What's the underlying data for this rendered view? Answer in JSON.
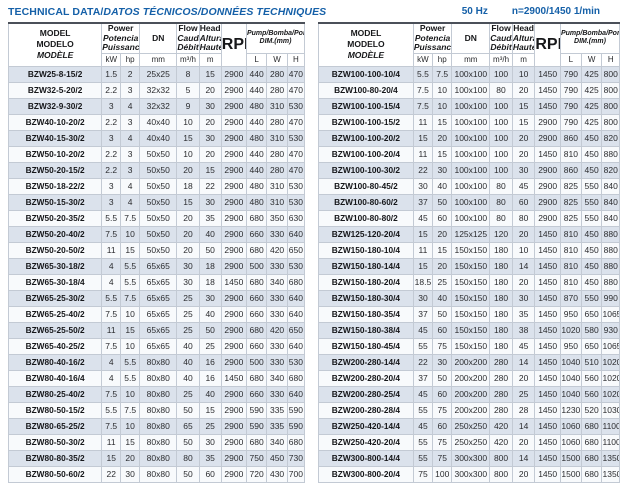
{
  "page": {
    "title_main": "TECHNICAL DATA/",
    "title_intl": "DATOS TÉCNICOS/DONNÉES TECHNIQUES",
    "frequency": "50 Hz",
    "speed": "n=2900/1450 1/min"
  },
  "colors": {
    "accent_blue": "#1560a8",
    "row_shaded": "#dbe2ec",
    "row_plain": "#f8fafc",
    "grid_line": "#c3cad4",
    "header_top_line": "#4b5059"
  },
  "header": {
    "model_l1": "MODEL",
    "model_l2": "MODELO",
    "model_l3": "MODÈLE",
    "power_l1": "Power",
    "power_l2": "Potencia",
    "power_l3": "Puissance",
    "dn": "DN",
    "flow_l1": "Flow",
    "flow_l2": "Caudal",
    "flow_l3": "Débit",
    "head_l1": "Head",
    "head_l2": "Altura",
    "head_l3": "Hauteur",
    "rpm": "RPM",
    "dim_l1": "Pump/Bomba/Pompe",
    "dim_l2": "DIM.(mm)",
    "unit_kw": "kW",
    "unit_hp": "hp",
    "unit_mm": "mm",
    "unit_flow": "m³/h",
    "unit_m": "m",
    "unit_l": "L",
    "unit_w": "W",
    "unit_h": "H"
  },
  "tables": [
    {
      "rows": [
        [
          "BZW25-8-15/2",
          "1.5",
          "2",
          "25x25",
          "8",
          "15",
          "2900",
          "440",
          "280",
          "470"
        ],
        [
          "BZW32-5-20/2",
          "2.2",
          "3",
          "32x32",
          "5",
          "20",
          "2900",
          "440",
          "280",
          "470"
        ],
        [
          "BZW32-9-30/2",
          "3",
          "4",
          "32x32",
          "9",
          "30",
          "2900",
          "480",
          "310",
          "530"
        ],
        [
          "BZW40-10-20/2",
          "2.2",
          "3",
          "40x40",
          "10",
          "20",
          "2900",
          "440",
          "280",
          "470"
        ],
        [
          "BZW40-15-30/2",
          "3",
          "4",
          "40x40",
          "15",
          "30",
          "2900",
          "480",
          "310",
          "530"
        ],
        [
          "BZW50-10-20/2",
          "2.2",
          "3",
          "50x50",
          "10",
          "20",
          "2900",
          "440",
          "280",
          "470"
        ],
        [
          "BZW50-20-15/2",
          "2.2",
          "3",
          "50x50",
          "20",
          "15",
          "2900",
          "440",
          "280",
          "470"
        ],
        [
          "BZW50-18-22/2",
          "3",
          "4",
          "50x50",
          "18",
          "22",
          "2900",
          "480",
          "310",
          "530"
        ],
        [
          "BZW50-15-30/2",
          "3",
          "4",
          "50x50",
          "15",
          "30",
          "2900",
          "480",
          "310",
          "530"
        ],
        [
          "BZW50-20-35/2",
          "5.5",
          "7.5",
          "50x50",
          "20",
          "35",
          "2900",
          "680",
          "350",
          "630"
        ],
        [
          "BZW50-20-40/2",
          "7.5",
          "10",
          "50x50",
          "20",
          "40",
          "2900",
          "660",
          "330",
          "640"
        ],
        [
          "BZW50-20-50/2",
          "11",
          "15",
          "50x50",
          "20",
          "50",
          "2900",
          "680",
          "420",
          "650"
        ],
        [
          "BZW65-30-18/2",
          "4",
          "5.5",
          "65x65",
          "30",
          "18",
          "2900",
          "500",
          "330",
          "530"
        ],
        [
          "BZW65-30-18/4",
          "4",
          "5.5",
          "65x65",
          "30",
          "18",
          "1450",
          "680",
          "340",
          "680"
        ],
        [
          "BZW65-25-30/2",
          "5.5",
          "7.5",
          "65x65",
          "25",
          "30",
          "2900",
          "660",
          "330",
          "640"
        ],
        [
          "BZW65-25-40/2",
          "7.5",
          "10",
          "65x65",
          "25",
          "40",
          "2900",
          "660",
          "330",
          "640"
        ],
        [
          "BZW65-25-50/2",
          "11",
          "15",
          "65x65",
          "25",
          "50",
          "2900",
          "680",
          "420",
          "650"
        ],
        [
          "BZW65-40-25/2",
          "7.5",
          "10",
          "65x65",
          "40",
          "25",
          "2900",
          "660",
          "330",
          "640"
        ],
        [
          "BZW80-40-16/2",
          "4",
          "5.5",
          "80x80",
          "40",
          "16",
          "2900",
          "500",
          "330",
          "530"
        ],
        [
          "BZW80-40-16/4",
          "4",
          "5.5",
          "80x80",
          "40",
          "16",
          "1450",
          "680",
          "340",
          "680"
        ],
        [
          "BZW80-25-40/2",
          "7.5",
          "10",
          "80x80",
          "25",
          "40",
          "2900",
          "660",
          "330",
          "640"
        ],
        [
          "BZW80-50-15/2",
          "5.5",
          "7.5",
          "80x80",
          "50",
          "15",
          "2900",
          "590",
          "335",
          "590"
        ],
        [
          "BZW80-65-25/2",
          "7.5",
          "10",
          "80x80",
          "65",
          "25",
          "2900",
          "590",
          "335",
          "590"
        ],
        [
          "BZW80-50-30/2",
          "11",
          "15",
          "80x80",
          "50",
          "30",
          "2900",
          "680",
          "340",
          "680"
        ],
        [
          "BZW80-80-35/2",
          "15",
          "20",
          "80x80",
          "80",
          "35",
          "2900",
          "750",
          "450",
          "730"
        ],
        [
          "BZW80-50-60/2",
          "22",
          "30",
          "80x80",
          "50",
          "60",
          "2900",
          "720",
          "430",
          "700"
        ]
      ]
    },
    {
      "rows": [
        [
          "BZW100-100-10/4",
          "5.5",
          "7.5",
          "100x100",
          "100",
          "10",
          "1450",
          "790",
          "425",
          "800"
        ],
        [
          "BZW100-80-20/4",
          "7.5",
          "10",
          "100x100",
          "80",
          "20",
          "1450",
          "790",
          "425",
          "800"
        ],
        [
          "BZW100-100-15/4",
          "7.5",
          "10",
          "100x100",
          "100",
          "15",
          "1450",
          "790",
          "425",
          "800"
        ],
        [
          "BZW100-100-15/2",
          "11",
          "15",
          "100x100",
          "100",
          "15",
          "2900",
          "790",
          "425",
          "800"
        ],
        [
          "BZW100-100-20/2",
          "15",
          "20",
          "100x100",
          "100",
          "20",
          "2900",
          "860",
          "450",
          "820"
        ],
        [
          "BZW100-100-20/4",
          "11",
          "15",
          "100x100",
          "100",
          "20",
          "1450",
          "810",
          "450",
          "880"
        ],
        [
          "BZW100-100-30/2",
          "22",
          "30",
          "100x100",
          "100",
          "30",
          "2900",
          "860",
          "450",
          "820"
        ],
        [
          "BZW100-80-45/2",
          "30",
          "40",
          "100x100",
          "80",
          "45",
          "2900",
          "825",
          "550",
          "840"
        ],
        [
          "BZW100-80-60/2",
          "37",
          "50",
          "100x100",
          "80",
          "60",
          "2900",
          "825",
          "550",
          "840"
        ],
        [
          "BZW100-80-80/2",
          "45",
          "60",
          "100x100",
          "80",
          "80",
          "2900",
          "825",
          "550",
          "840"
        ],
        [
          "BZW125-120-20/4",
          "15",
          "20",
          "125x125",
          "120",
          "20",
          "1450",
          "810",
          "450",
          "880"
        ],
        [
          "BZW150-180-10/4",
          "11",
          "15",
          "150x150",
          "180",
          "10",
          "1450",
          "810",
          "450",
          "880"
        ],
        [
          "BZW150-180-14/4",
          "15",
          "20",
          "150x150",
          "180",
          "14",
          "1450",
          "810",
          "450",
          "880"
        ],
        [
          "BZW150-180-20/4",
          "18.5",
          "25",
          "150x150",
          "180",
          "20",
          "1450",
          "810",
          "450",
          "880"
        ],
        [
          "BZW150-180-30/4",
          "30",
          "40",
          "150x150",
          "180",
          "30",
          "1450",
          "870",
          "550",
          "990"
        ],
        [
          "BZW150-180-35/4",
          "37",
          "50",
          "150x150",
          "180",
          "35",
          "1450",
          "950",
          "650",
          "1065"
        ],
        [
          "BZW150-180-38/4",
          "45",
          "60",
          "150x150",
          "180",
          "38",
          "1450",
          "1020",
          "580",
          "930"
        ],
        [
          "BZW150-180-45/4",
          "55",
          "75",
          "150x150",
          "180",
          "45",
          "1450",
          "950",
          "650",
          "1065"
        ],
        [
          "BZW200-280-14/4",
          "22",
          "30",
          "200x200",
          "280",
          "14",
          "1450",
          "1040",
          "510",
          "1020"
        ],
        [
          "BZW200-280-20/4",
          "37",
          "50",
          "200x200",
          "280",
          "20",
          "1450",
          "1040",
          "560",
          "1020"
        ],
        [
          "BZW200-280-25/4",
          "45",
          "60",
          "200x200",
          "280",
          "25",
          "1450",
          "1040",
          "560",
          "1020"
        ],
        [
          "BZW200-280-28/4",
          "55",
          "75",
          "200x200",
          "280",
          "28",
          "1450",
          "1230",
          "520",
          "1030"
        ],
        [
          "BZW250-420-14/4",
          "45",
          "60",
          "250x250",
          "420",
          "14",
          "1450",
          "1060",
          "680",
          "1100"
        ],
        [
          "BZW250-420-20/4",
          "55",
          "75",
          "250x250",
          "420",
          "20",
          "1450",
          "1060",
          "680",
          "1100"
        ],
        [
          "BZW300-800-14/4",
          "55",
          "75",
          "300x300",
          "800",
          "14",
          "1450",
          "1500",
          "680",
          "1350"
        ],
        [
          "BZW300-800-20/4",
          "75",
          "100",
          "300x300",
          "800",
          "20",
          "1450",
          "1500",
          "680",
          "1350"
        ]
      ]
    }
  ]
}
